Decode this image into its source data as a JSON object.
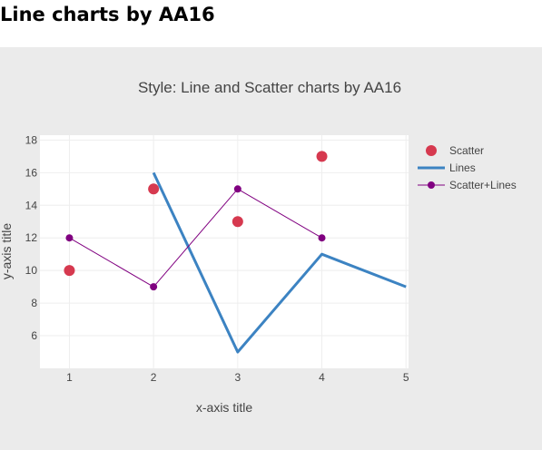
{
  "page": {
    "heading": "Line charts by AA16"
  },
  "colors": {
    "panel_bg": "#ebebeb",
    "plot_bg": "#ffffff",
    "grid": "#eeeeee",
    "text": "#444444"
  },
  "chart_data": {
    "type": "line",
    "title": "Style: Line and Scatter charts by AA16",
    "xlabel": "x-axis title",
    "ylabel": "y-axis title",
    "xlim": [
      0.65,
      5.03
    ],
    "ylim": [
      4.0,
      18.3
    ],
    "xticks": [
      1,
      2,
      3,
      4,
      5
    ],
    "yticks": [
      6,
      8,
      10,
      12,
      14,
      16,
      18
    ],
    "grid": true,
    "legend_position": "right",
    "series": [
      {
        "name": "Scatter",
        "mode": "markers",
        "color": "#d6394f",
        "x": [
          1,
          2,
          3,
          4
        ],
        "y": [
          10,
          15,
          13,
          17
        ]
      },
      {
        "name": "Lines",
        "mode": "lines",
        "color": "#3c83c2",
        "x": [
          2,
          3,
          4,
          5
        ],
        "y": [
          16,
          5,
          11,
          9
        ]
      },
      {
        "name": "Scatter+Lines",
        "mode": "lines+markers",
        "color": "#800080",
        "x": [
          1,
          2,
          3,
          4
        ],
        "y": [
          12,
          9,
          15,
          12
        ]
      }
    ]
  }
}
